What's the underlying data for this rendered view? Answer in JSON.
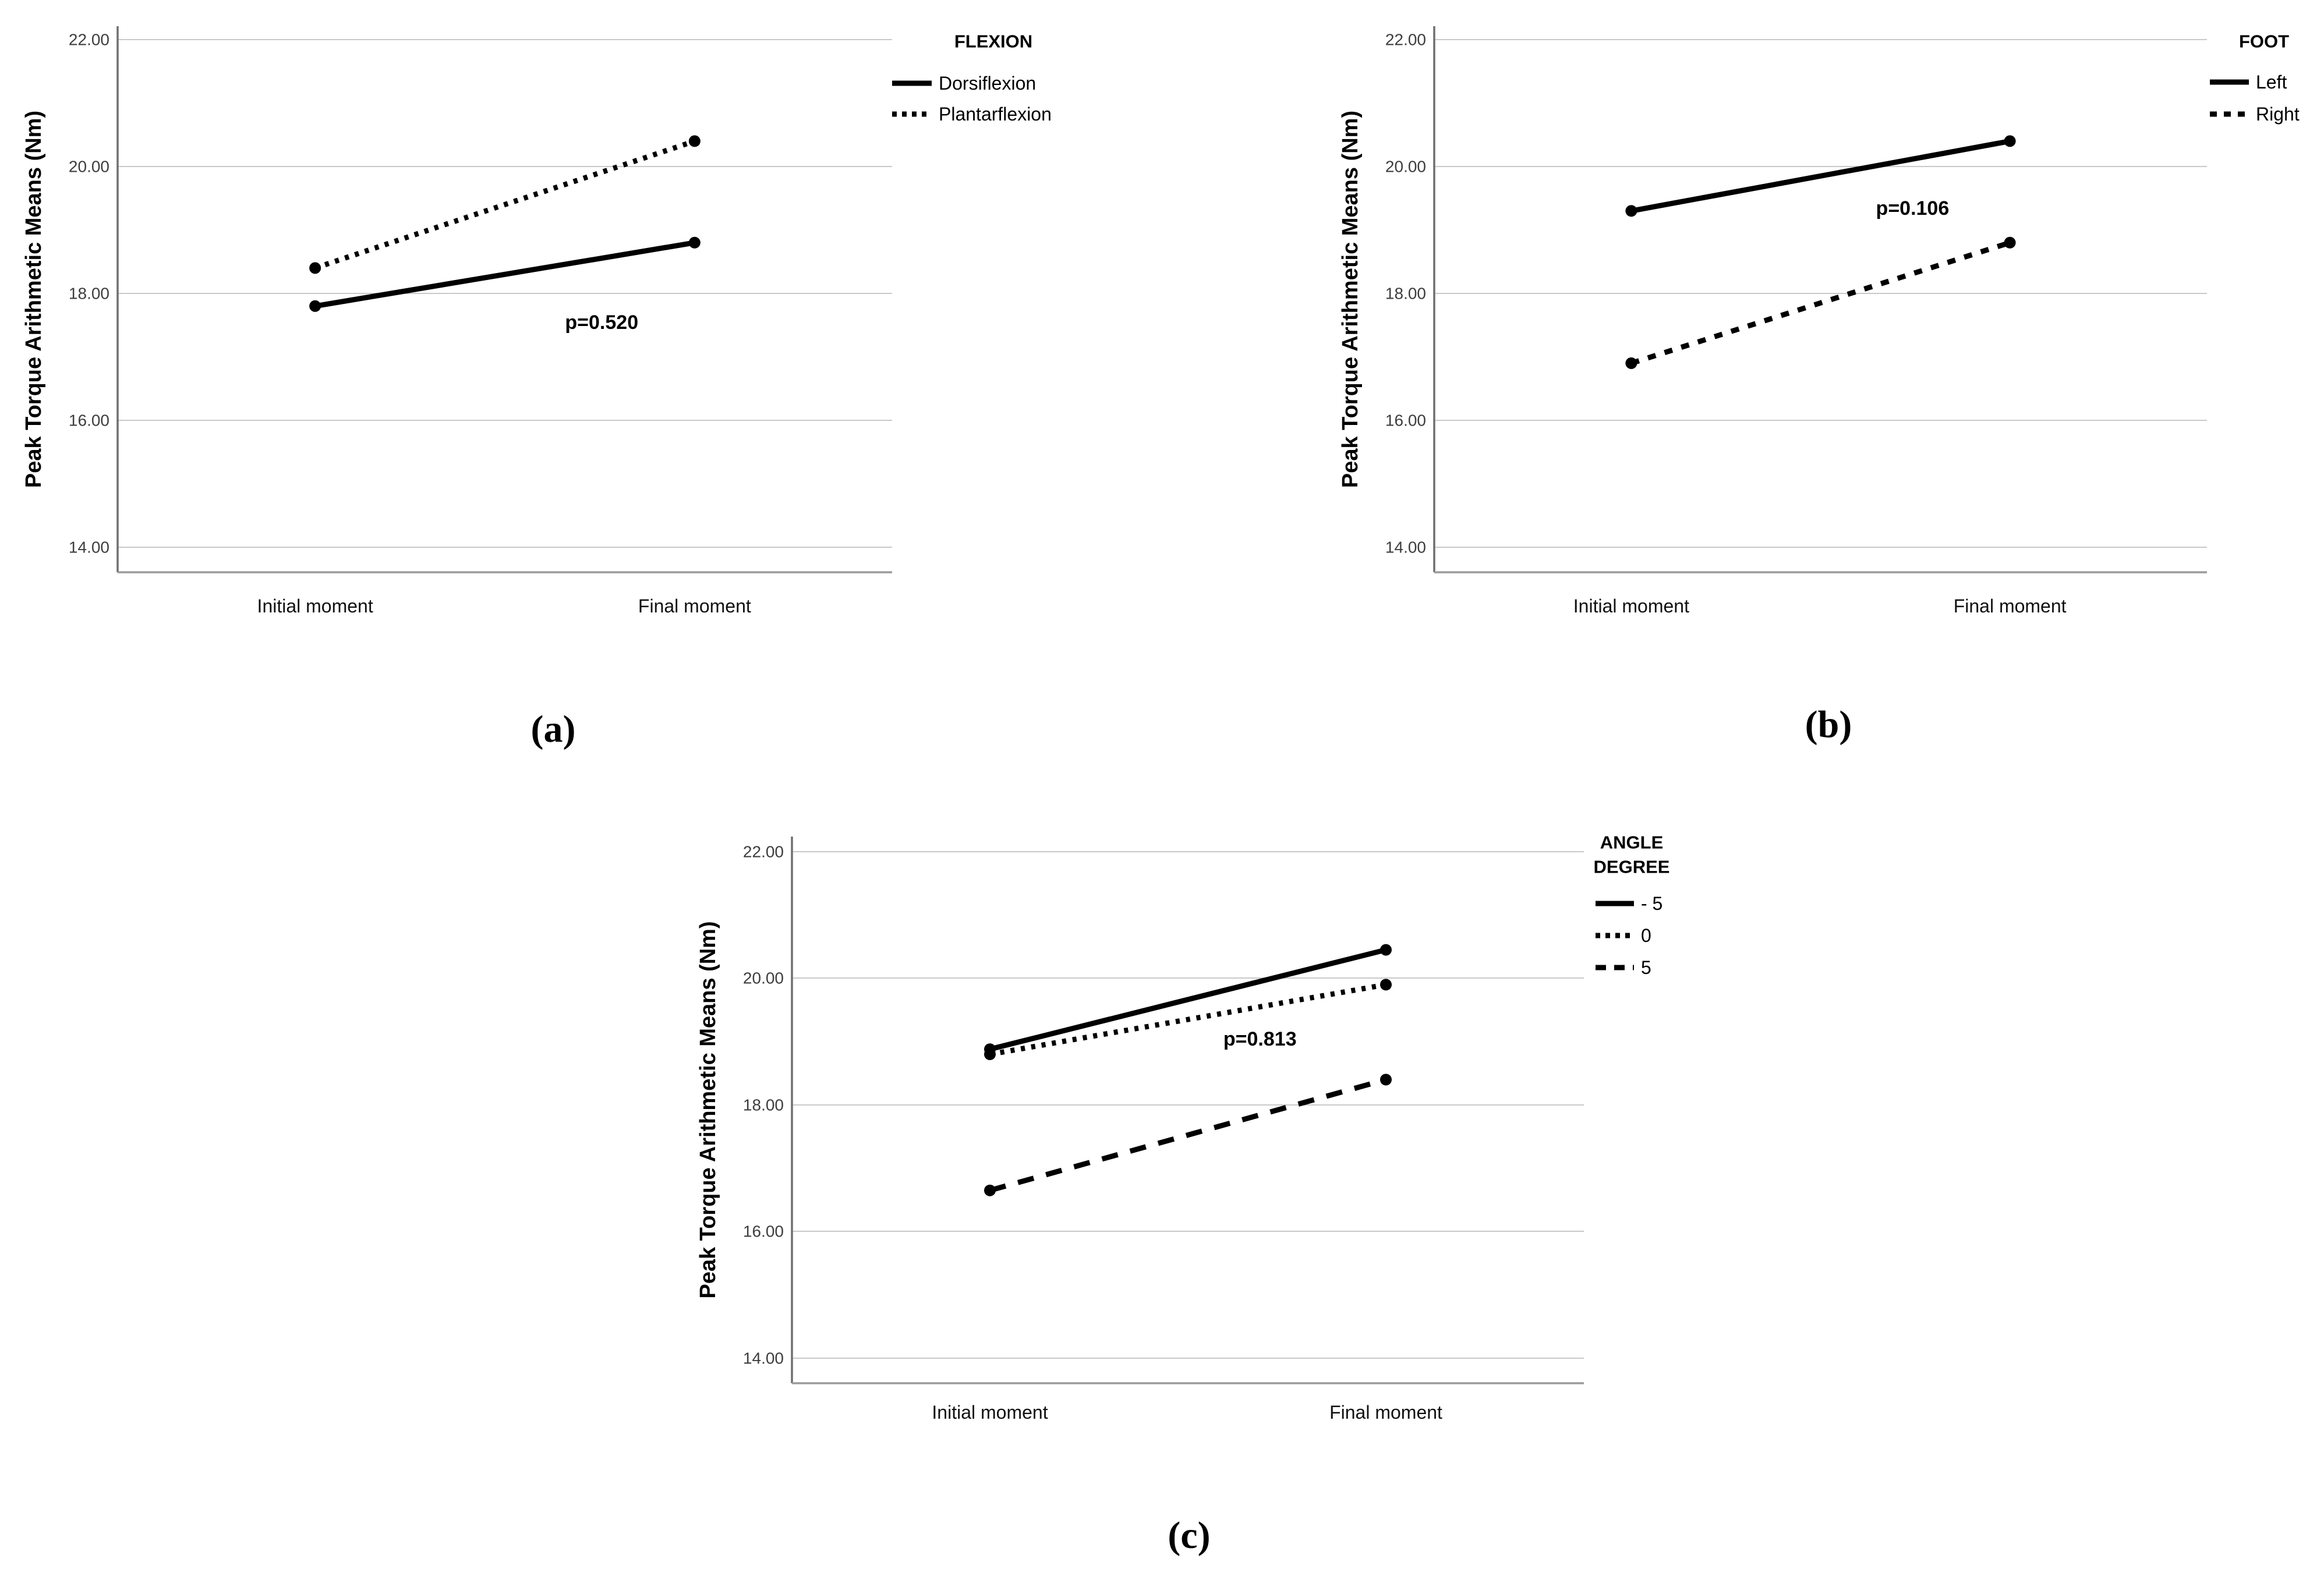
{
  "figure": {
    "background": "#ffffff",
    "panels": [
      "a",
      "b",
      "c"
    ],
    "colors": {
      "line": "#000000",
      "grid": "#c9c9c9",
      "x_axis": "#9b9b9b",
      "y_axis": "#6f6f6f",
      "tick_text": "#3d3d3d"
    }
  },
  "chart_data": [
    {
      "id": "a",
      "type": "line",
      "caption": "(a)",
      "legend_title": "FLEXION",
      "legend_position": "top-right",
      "categories": [
        "Initial moment",
        "Final moment"
      ],
      "series": [
        {
          "name": "Dorsiflexion",
          "line_style": "solid",
          "color": "#000000",
          "values": [
            17.8,
            18.8
          ]
        },
        {
          "name": "Plantarflexion",
          "line_style": "dotted",
          "color": "#000000",
          "values": [
            18.4,
            20.4
          ]
        }
      ],
      "annotation": "p=0.520",
      "xlabel": "",
      "ylabel": "Peak Torque Arithmetic Means (Nm)",
      "y_ticks": [
        "22.00",
        "20.00",
        "18.00",
        "16.00",
        "14.00"
      ],
      "ylim": [
        13.6,
        22.3
      ],
      "grid": true,
      "markers": "filled-circle"
    },
    {
      "id": "b",
      "type": "line",
      "caption": "(b)",
      "legend_title": "FOOT",
      "legend_position": "top-right",
      "categories": [
        "Initial moment",
        "Final moment"
      ],
      "series": [
        {
          "name": "Left",
          "line_style": "solid",
          "color": "#000000",
          "values": [
            19.3,
            20.4
          ]
        },
        {
          "name": "Right",
          "line_style": "dashed",
          "color": "#000000",
          "values": [
            16.9,
            18.8
          ]
        }
      ],
      "annotation": "p=0.106",
      "xlabel": "",
      "ylabel": "Peak Torque Arithmetic Means (Nm)",
      "y_ticks": [
        "22.00",
        "20.00",
        "18.00",
        "16.00",
        "14.00"
      ],
      "ylim": [
        13.6,
        22.3
      ],
      "grid": true,
      "markers": "filled-circle"
    },
    {
      "id": "c",
      "type": "line",
      "caption": "(c)",
      "legend_title": "ANGLE DEGREE",
      "legend_title_lines": [
        "ANGLE",
        "DEGREE"
      ],
      "legend_position": "top-right",
      "categories": [
        "Initial moment",
        "Final moment"
      ],
      "series": [
        {
          "name": "- 5",
          "line_style": "solid",
          "color": "#000000",
          "values": [
            18.88,
            20.45
          ]
        },
        {
          "name": "0",
          "line_style": "dotted",
          "color": "#000000",
          "values": [
            18.8,
            19.9
          ]
        },
        {
          "name": "5",
          "line_style": "long-dash",
          "color": "#000000",
          "values": [
            16.65,
            18.4
          ]
        }
      ],
      "annotation": "p=0.813",
      "xlabel": "",
      "ylabel": "Peak Torque Arithmetic Means (Nm)",
      "y_ticks": [
        "22.00",
        "20.00",
        "18.00",
        "16.00",
        "14.00"
      ],
      "ylim": [
        13.6,
        22.3
      ],
      "grid": true,
      "markers": "filled-circle"
    }
  ]
}
